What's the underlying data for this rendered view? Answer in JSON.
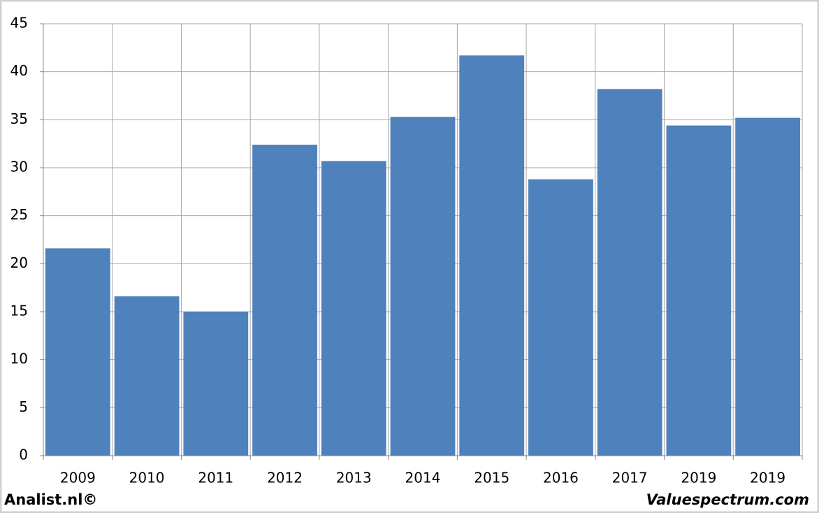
{
  "chart_data": {
    "type": "bar",
    "categories": [
      "2009",
      "2010",
      "2011",
      "2012",
      "2013",
      "2014",
      "2015",
      "2016",
      "2017",
      "2019",
      "2019"
    ],
    "values": [
      21.6,
      16.6,
      15.0,
      32.4,
      30.7,
      35.3,
      41.7,
      28.8,
      38.2,
      34.4,
      35.2
    ],
    "color": "#4f81bd",
    "ylim": [
      0,
      45
    ],
    "yticks": [
      0,
      5,
      10,
      15,
      20,
      25,
      30,
      35,
      40,
      45
    ],
    "grid": true,
    "source_left": "Analist.nl©",
    "source_right": "Valuespectrum.com"
  }
}
